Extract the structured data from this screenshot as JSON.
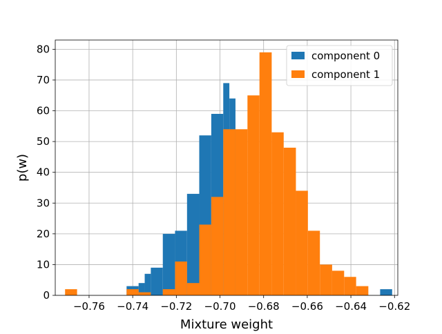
{
  "chart_data": {
    "type": "histogram",
    "xlabel": "Mixture weight",
    "ylabel": "p(w)",
    "xlim": [
      -0.7755,
      -0.6185
    ],
    "ylim": [
      0,
      83
    ],
    "xticks": [
      -0.76,
      -0.74,
      -0.72,
      -0.7,
      -0.68,
      -0.66,
      -0.64,
      -0.62
    ],
    "xtick_labels": [
      "−0.76",
      "−0.74",
      "−0.72",
      "−0.70",
      "−0.68",
      "−0.66",
      "−0.64",
      "−0.62"
    ],
    "yticks": [
      0,
      10,
      20,
      30,
      40,
      50,
      60,
      70,
      80
    ],
    "ytick_labels": [
      "0",
      "10",
      "20",
      "30",
      "40",
      "50",
      "60",
      "70",
      "80"
    ],
    "grid": true,
    "legend": {
      "placement": "upper-right"
    },
    "series": [
      {
        "name": "component 0",
        "color": "#1f77b4",
        "bins": [
          {
            "x0": -0.7428,
            "x1": -0.7373,
            "count": 3
          },
          {
            "x0": -0.7373,
            "x1": -0.7345,
            "count": 4
          },
          {
            "x0": -0.7345,
            "x1": -0.7317,
            "count": 7
          },
          {
            "x0": -0.7317,
            "x1": -0.7262,
            "count": 9
          },
          {
            "x0": -0.7262,
            "x1": -0.7206,
            "count": 20
          },
          {
            "x0": -0.7206,
            "x1": -0.7151,
            "count": 21
          },
          {
            "x0": -0.7151,
            "x1": -0.7095,
            "count": 33
          },
          {
            "x0": -0.7095,
            "x1": -0.704,
            "count": 52
          },
          {
            "x0": -0.704,
            "x1": -0.6985,
            "count": 59
          },
          {
            "x0": -0.6985,
            "x1": -0.6957,
            "count": 69
          },
          {
            "x0": -0.6957,
            "x1": -0.6929,
            "count": 64
          },
          {
            "x0": -0.6423,
            "x1": -0.6405,
            "count": 2
          },
          {
            "x0": -0.6266,
            "x1": -0.6211,
            "count": 2
          }
        ]
      },
      {
        "name": "component 1",
        "color": "#ff7f0e",
        "bins": [
          {
            "x0": -0.771,
            "x1": -0.7655,
            "count": 2
          },
          {
            "x0": -0.7428,
            "x1": -0.7373,
            "count": 2
          },
          {
            "x0": -0.7373,
            "x1": -0.7317,
            "count": 1
          },
          {
            "x0": -0.7262,
            "x1": -0.7206,
            "count": 2
          },
          {
            "x0": -0.7206,
            "x1": -0.7151,
            "count": 11
          },
          {
            "x0": -0.7151,
            "x1": -0.7095,
            "count": 4
          },
          {
            "x0": -0.7095,
            "x1": -0.704,
            "count": 23
          },
          {
            "x0": -0.704,
            "x1": -0.6985,
            "count": 32
          },
          {
            "x0": -0.6985,
            "x1": -0.6929,
            "count": 54
          },
          {
            "x0": -0.6929,
            "x1": -0.6874,
            "count": 54
          },
          {
            "x0": -0.6874,
            "x1": -0.6819,
            "count": 65
          },
          {
            "x0": -0.6819,
            "x1": -0.6763,
            "count": 79
          },
          {
            "x0": -0.6763,
            "x1": -0.6708,
            "count": 53
          },
          {
            "x0": -0.6708,
            "x1": -0.6652,
            "count": 48
          },
          {
            "x0": -0.6652,
            "x1": -0.6597,
            "count": 34
          },
          {
            "x0": -0.6597,
            "x1": -0.6542,
            "count": 21
          },
          {
            "x0": -0.6542,
            "x1": -0.6486,
            "count": 10
          },
          {
            "x0": -0.6486,
            "x1": -0.6431,
            "count": 8
          },
          {
            "x0": -0.6431,
            "x1": -0.6376,
            "count": 6
          },
          {
            "x0": -0.6376,
            "x1": -0.632,
            "count": 3
          }
        ]
      }
    ]
  }
}
